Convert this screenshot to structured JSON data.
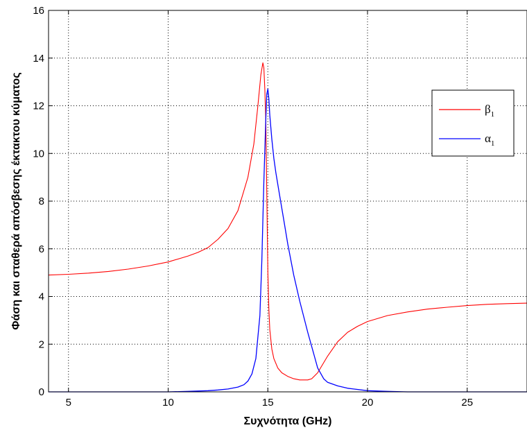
{
  "chart_data": {
    "type": "line",
    "title": "",
    "xlabel": "Συχνότητα (GHz)",
    "ylabel": "Φάση και σταθερά απόσβεσης έκτακτου κύματος",
    "xlim": [
      4,
      28
    ],
    "ylim": [
      0,
      16
    ],
    "xticks": [
      5,
      10,
      15,
      20,
      25
    ],
    "yticks": [
      0,
      2,
      4,
      6,
      8,
      10,
      12,
      14,
      16
    ],
    "grid": true,
    "legend_position": "right",
    "series": [
      {
        "name": "β1",
        "legend_base": "β",
        "legend_sub": "1",
        "color": "#ff0000",
        "x": [
          4,
          5,
          6,
          7,
          8,
          9,
          10,
          11,
          11.5,
          12,
          12.5,
          13,
          13.5,
          14,
          14.3,
          14.5,
          14.65,
          14.75,
          14.8,
          14.85,
          14.9,
          14.95,
          15.0,
          15.05,
          15.1,
          15.2,
          15.3,
          15.5,
          15.7,
          16,
          16.3,
          16.6,
          17,
          17.2,
          17.5,
          18,
          18.5,
          19,
          19.5,
          20,
          21,
          22,
          23,
          24,
          25,
          26,
          27,
          28
        ],
        "y": [
          4.9,
          4.93,
          4.98,
          5.05,
          5.15,
          5.28,
          5.45,
          5.7,
          5.85,
          6.05,
          6.4,
          6.85,
          7.6,
          9.0,
          10.4,
          12.0,
          13.3,
          13.8,
          13.6,
          12.7,
          11.3,
          8.2,
          5.0,
          3.5,
          2.6,
          1.8,
          1.4,
          1.0,
          0.8,
          0.65,
          0.55,
          0.5,
          0.5,
          0.55,
          0.8,
          1.5,
          2.1,
          2.5,
          2.75,
          2.95,
          3.2,
          3.35,
          3.47,
          3.55,
          3.62,
          3.67,
          3.7,
          3.72
        ]
      },
      {
        "name": "α1",
        "legend_base": "α",
        "legend_sub": "1",
        "color": "#0000ff",
        "x": [
          4,
          8,
          10,
          11,
          12,
          12.5,
          13,
          13.5,
          13.8,
          14,
          14.2,
          14.4,
          14.6,
          14.7,
          14.8,
          14.9,
          14.95,
          15.0,
          15.05,
          15.1,
          15.2,
          15.3,
          15.4,
          15.6,
          15.8,
          16,
          16.3,
          16.6,
          17,
          17.3,
          17.5,
          17.8,
          18,
          18.5,
          19,
          20,
          21,
          22,
          28
        ],
        "y": [
          0,
          0,
          0,
          0.02,
          0.05,
          0.08,
          0.12,
          0.2,
          0.3,
          0.45,
          0.75,
          1.4,
          3.2,
          5.5,
          8.8,
          11.5,
          12.5,
          12.7,
          12.3,
          11.6,
          10.6,
          9.8,
          9.2,
          8.2,
          7.2,
          6.2,
          4.9,
          3.8,
          2.5,
          1.6,
          1.0,
          0.55,
          0.4,
          0.25,
          0.15,
          0.05,
          0.02,
          0,
          0
        ]
      }
    ]
  }
}
